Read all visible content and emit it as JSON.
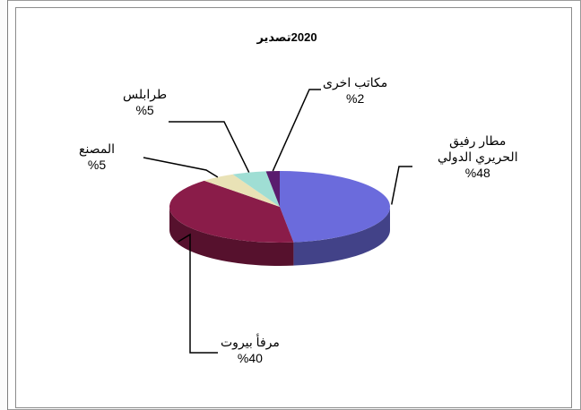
{
  "chart_data": {
    "type": "pie",
    "title": "2020تصدير",
    "slices": [
      {
        "name": "مطار رفيق الحريري الدولي",
        "name_lines": [
          "مطار رفيق",
          "الحريري الدولي"
        ],
        "value": 48,
        "label": "%48",
        "color": "#6b6bdc"
      },
      {
        "name": "مرفأ بيروت",
        "name_lines": [
          "مرفأ بيروت"
        ],
        "value": 40,
        "label": "%40",
        "color": "#8a1c49"
      },
      {
        "name": "المصنع",
        "name_lines": [
          "المصنع"
        ],
        "value": 5,
        "label": "%5",
        "color": "#e9e2b6"
      },
      {
        "name": "طرابلس",
        "name_lines": [
          "طرابلس"
        ],
        "value": 5,
        "label": "%5",
        "color": "#9fded4"
      },
      {
        "name": "مكاتب اخرى",
        "name_lines": [
          "مكاتب اخرى"
        ],
        "value": 2,
        "label": "%2",
        "color": "#5a1c6e"
      }
    ],
    "legend": "none",
    "style": "3d-pie"
  }
}
